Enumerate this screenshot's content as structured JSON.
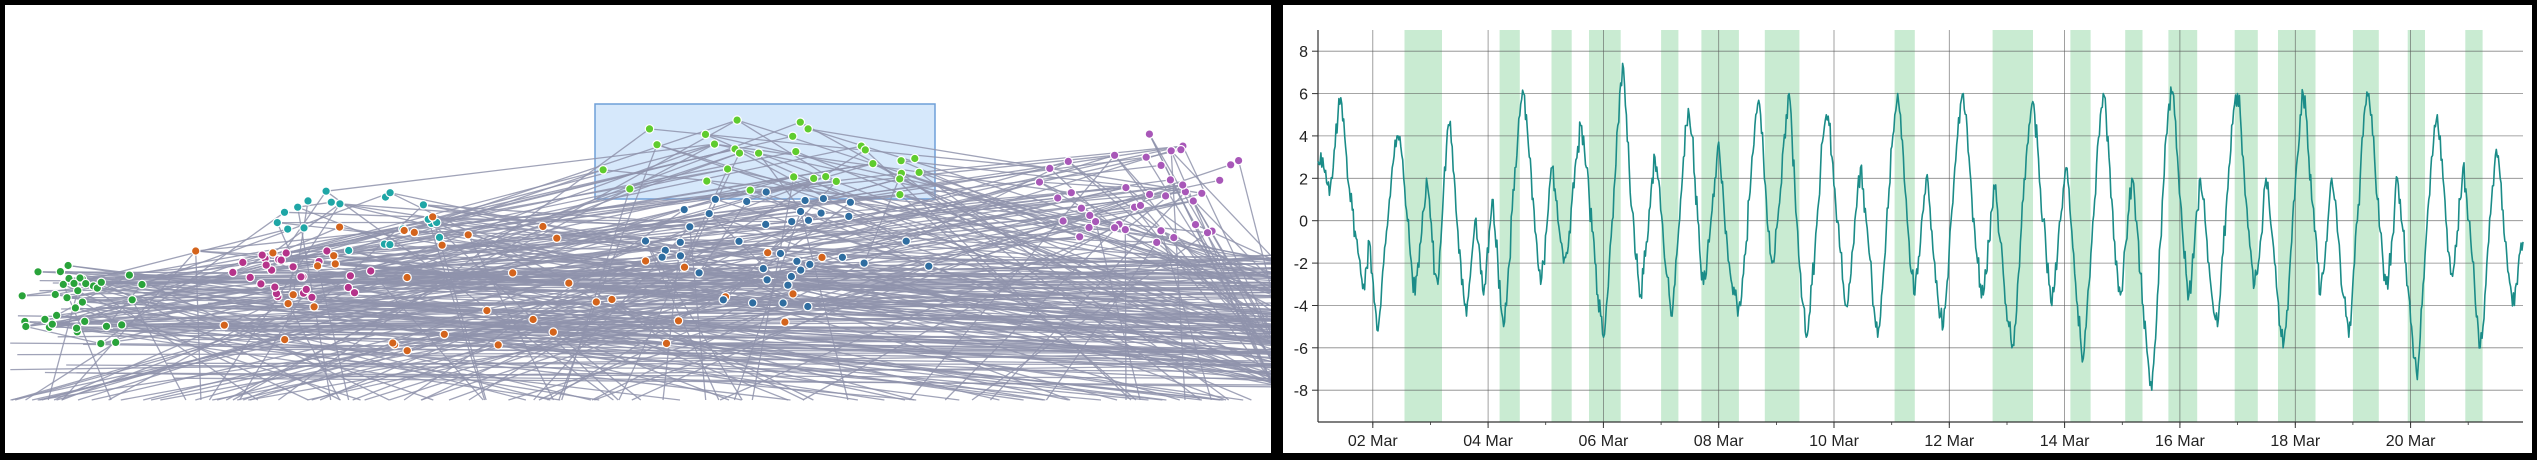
{
  "colors": {
    "edge": "#8f93ab",
    "selection_fill": "#d6e8fb",
    "selection_stroke": "#6f9fd8",
    "line": "#1b8c88",
    "band": "#c9ebd2",
    "grid": "#555555",
    "clusters": [
      "#29a33a",
      "#1fa6a6",
      "#b5338a",
      "#d4641c",
      "#2f6da0",
      "#5fcc2e",
      "#a857b8"
    ]
  },
  "network": {
    "clusters": [
      {
        "name": "green-left",
        "color_index": 0
      },
      {
        "name": "teal",
        "color_index": 1
      },
      {
        "name": "magenta",
        "color_index": 2
      },
      {
        "name": "orange",
        "color_index": 3
      },
      {
        "name": "blue",
        "color_index": 4
      },
      {
        "name": "lime",
        "color_index": 5
      },
      {
        "name": "purple",
        "color_index": 6
      }
    ]
  },
  "chart_data": {
    "type": "line",
    "title": "",
    "xlabel": "",
    "ylabel": "",
    "x_start": "01 Mar",
    "x_end": "21 Mar",
    "x_ticks": [
      "02 Mar",
      "04 Mar",
      "06 Mar",
      "08 Mar",
      "10 Mar",
      "12 Mar",
      "14 Mar",
      "16 Mar",
      "18 Mar",
      "20 Mar"
    ],
    "ylim": [
      -9.5,
      9
    ],
    "y_ticks": [
      "8",
      "6",
      "4",
      "2",
      "0",
      "-2",
      "-4",
      "-6",
      "-8"
    ],
    "grid": true,
    "series": [
      {
        "x_days_from": "01 Mar",
        "values": [
          2.8,
          3.2,
          2.5,
          1.8,
          1.2,
          2.0,
          3.5,
          5.0,
          5.8,
          4.8,
          3.0,
          1.5,
          0.5,
          -0.5,
          -1.5,
          -2.5,
          -3.0,
          -2.2,
          -1.0,
          -2.5,
          -4.0,
          -5.2,
          -4.0,
          -2.0,
          -0.5,
          1.0,
          2.5,
          3.8,
          4.0,
          3.5,
          2.0,
          0.5,
          -1.0,
          -2.5,
          -3.5,
          -2.0,
          -1.0,
          0.5,
          2.0,
          1.0,
          -1.0,
          -2.5,
          -3.0,
          -1.0,
          1.5,
          3.5,
          4.5,
          3.5,
          1.5,
          -0.5,
          -2.0,
          -3.5,
          -4.5,
          -3.0,
          -1.5,
          0.0,
          -1.0,
          -2.5,
          -3.5,
          -2.0,
          -0.5,
          1.0,
          -0.5,
          -2.0,
          -4.0,
          -5.0,
          -4.0,
          -2.0,
          0.5,
          2.5,
          4.0,
          5.5,
          6.0,
          5.0,
          3.0,
          1.0,
          -0.5,
          -2.0,
          -3.0,
          -2.0,
          -0.5,
          1.5,
          2.5,
          1.5,
          0.0,
          -1.0,
          -2.0,
          -1.5,
          -0.5,
          1.0,
          2.5,
          3.5,
          4.5,
          4.0,
          2.5,
          1.0,
          -0.5,
          -2.0,
          -3.5,
          -4.5,
          -5.5,
          -4.0,
          -2.0,
          0.0,
          2.0,
          4.5,
          6.5,
          7.2,
          5.0,
          2.5,
          0.5,
          -1.5,
          -2.5,
          -3.5,
          -2.5,
          -1.0,
          0.5,
          2.0,
          3.0,
          2.0,
          0.5,
          -1.0,
          -2.5,
          -3.5,
          -4.5,
          -3.0,
          -1.0,
          1.0,
          3.0,
          4.5,
          5.0,
          4.0,
          2.0,
          0.0,
          -2.0,
          -3.0,
          -2.5,
          -1.0,
          0.5,
          2.0,
          3.5,
          2.5,
          1.0,
          -0.5,
          -2.0,
          -3.0,
          -3.5,
          -4.5,
          -4.0,
          -2.5,
          -1.0,
          1.0,
          3.0,
          4.5,
          5.5,
          5.0,
          3.0,
          1.0,
          -0.5,
          -2.0,
          -1.5,
          0.0,
          1.5,
          3.5,
          5.0,
          6.0,
          4.0,
          1.5,
          -0.5,
          -2.5,
          -4.0,
          -5.5,
          -4.5,
          -3.0,
          -1.5,
          0.5,
          2.5,
          4.0,
          5.0,
          4.5,
          3.0,
          1.5,
          0.0,
          -1.5,
          -3.0,
          -4.0,
          -3.0,
          -1.5,
          0.0,
          1.5,
          2.5,
          1.5,
          0.0,
          -1.5,
          -3.0,
          -4.5,
          -5.5,
          -4.5,
          -2.5,
          -0.5,
          1.5,
          3.5,
          5.0,
          6.0,
          5.0,
          3.0,
          1.0,
          -1.0,
          -2.5,
          -3.5,
          -2.5,
          -1.0,
          0.5,
          2.0,
          1.0,
          -0.5,
          -2.0,
          -3.5,
          -4.5,
          -5.0,
          -3.5,
          -1.5,
          0.5,
          2.5,
          4.0,
          5.5,
          6.0,
          5.0,
          3.0,
          1.0,
          -0.5,
          -2.0,
          -3.0,
          -3.5,
          -2.5,
          -1.0,
          0.5,
          1.5,
          0.5,
          -1.0,
          -2.5,
          -4.0,
          -5.0,
          -6.0,
          -5.0,
          -3.0,
          -1.0,
          1.0,
          3.0,
          4.5,
          5.5,
          5.0,
          3.5,
          1.5,
          0.0,
          -1.5,
          -3.0,
          -4.0,
          -3.0,
          -1.5,
          0.0,
          1.5,
          2.5,
          1.5,
          -0.5,
          -2.5,
          -4.0,
          -5.5,
          -6.5,
          -5.0,
          -3.0,
          -1.0,
          1.0,
          3.5,
          5.0,
          6.0,
          5.0,
          3.0,
          1.0,
          -1.0,
          -2.5,
          -3.5,
          -2.5,
          -1.0,
          0.5,
          2.0,
          1.0,
          -0.5,
          -2.5,
          -4.0,
          -5.5,
          -7.0,
          -8.0,
          -6.0,
          -3.5,
          -1.0,
          1.5,
          4.0,
          5.5,
          6.0,
          5.0,
          3.0,
          1.0,
          -1.0,
          -2.5,
          -3.5,
          -2.5,
          -1.0,
          0.5,
          2.0,
          1.0,
          -0.5,
          -2.0,
          -3.5,
          -4.5,
          -5.0,
          -3.5,
          -1.5,
          0.5,
          2.5,
          4.5,
          5.5,
          6.0,
          5.0,
          3.0,
          1.0,
          -0.5,
          -2.0,
          -3.0,
          -2.5,
          -1.0,
          0.5,
          2.0,
          1.0,
          -0.5,
          -2.0,
          -3.5,
          -5.0,
          -6.0,
          -5.0,
          -3.0,
          -1.0,
          1.0,
          3.0,
          5.0,
          6.0,
          5.0,
          3.0,
          1.0,
          -0.5,
          -2.0,
          -3.5,
          -2.5,
          -1.0,
          0.5,
          2.0,
          1.0,
          -0.5,
          -2.0,
          -3.5,
          -4.5,
          -5.5,
          -4.0,
          -2.0,
          0.0,
          2.0,
          4.0,
          5.5,
          6.0,
          5.0,
          3.0,
          1.0,
          -0.5,
          -2.0,
          -3.0,
          -2.5,
          -1.0,
          0.5,
          2.0,
          1.0,
          -0.5,
          -2.0,
          -3.5,
          -5.0,
          -6.5,
          -7.5,
          -5.5,
          -3.0,
          -1.0,
          1.0,
          3.0,
          4.5,
          5.0,
          4.0,
          2.0,
          0.0,
          -1.5,
          -2.5,
          -2.0,
          -0.5,
          1.0,
          2.5,
          1.5,
          0.0,
          -1.5,
          -3.0,
          -4.5,
          -6.0,
          -5.0,
          -3.0,
          -1.0,
          1.0,
          2.5,
          3.0,
          2.0,
          0.5,
          -1.0,
          -2.5,
          -3.5,
          -4.0,
          -3.0,
          -1.5,
          -1.0
        ]
      }
    ],
    "shaded_intervals_days": [
      [
        1.55,
        2.2
      ],
      [
        3.2,
        3.55
      ],
      [
        4.1,
        4.45
      ],
      [
        4.75,
        5.3
      ],
      [
        6.0,
        6.3
      ],
      [
        6.7,
        7.35
      ],
      [
        7.8,
        8.4
      ],
      [
        10.05,
        10.4
      ],
      [
        11.75,
        12.45
      ],
      [
        13.1,
        13.45
      ],
      [
        14.05,
        14.35
      ],
      [
        14.8,
        15.3
      ],
      [
        15.95,
        16.35
      ],
      [
        16.7,
        17.35
      ],
      [
        18.0,
        18.45
      ],
      [
        18.95,
        19.25
      ],
      [
        19.95,
        20.25
      ]
    ]
  }
}
